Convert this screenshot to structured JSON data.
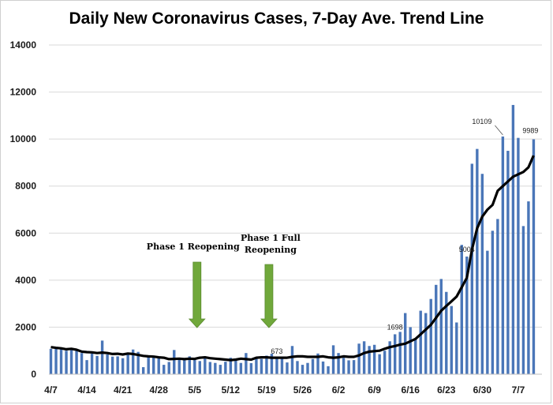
{
  "chart_data": {
    "type": "bar",
    "title": "Daily New Coronavirus Cases, 7-Day Ave. Trend Line",
    "xlabel": "",
    "ylabel": "",
    "ylim": [
      0,
      14000
    ],
    "yticks": [
      0,
      2000,
      4000,
      6000,
      8000,
      10000,
      12000,
      14000
    ],
    "grid": true,
    "legend": "none",
    "x_tick_labels": [
      "4/7",
      "4/14",
      "4/21",
      "4/28",
      "5/5",
      "5/12",
      "5/19",
      "5/26",
      "6/2",
      "6/9",
      "6/16",
      "6/23",
      "6/30",
      "7/7"
    ],
    "series": [
      {
        "name": "",
        "kind": "bar",
        "color": "#4a76b8",
        "values": [
          1080,
          1100,
          1120,
          1000,
          1050,
          990,
          900,
          600,
          880,
          780,
          1430,
          840,
          750,
          760,
          680,
          870,
          1050,
          950,
          300,
          790,
          740,
          700,
          400,
          520,
          1030,
          630,
          610,
          760,
          690,
          560,
          710,
          520,
          480,
          400,
          530,
          700,
          600,
          480,
          900,
          470,
          700,
          650,
          790,
          870,
          673,
          680,
          500,
          1200,
          560,
          400,
          480,
          650,
          880,
          540,
          340,
          1230,
          900,
          700,
          590,
          600,
          1300,
          1400,
          1200,
          1250,
          850,
          1000,
          1400,
          1698,
          1800,
          2600,
          2000,
          1500,
          2700,
          2600,
          3200,
          3800,
          4050,
          3500,
          2900,
          2200,
          5500,
          5004,
          8950,
          9580,
          8520,
          5250,
          6100,
          6600,
          10109,
          9500,
          11450,
          10050,
          6300,
          7350,
          9989
        ]
      },
      {
        "name": "",
        "kind": "line",
        "label": "7-Day Ave. Trend Line",
        "color": "#000000",
        "values": [
          1150,
          1120,
          1100,
          1060,
          1080,
          1040,
          960,
          940,
          930,
          900,
          920,
          900,
          860,
          870,
          840,
          880,
          860,
          820,
          780,
          760,
          750,
          720,
          700,
          640,
          650,
          660,
          640,
          660,
          650,
          700,
          720,
          680,
          660,
          640,
          620,
          600,
          620,
          660,
          640,
          620,
          700,
          720,
          720,
          700,
          700,
          700,
          700,
          740,
          760,
          760,
          740,
          740,
          740,
          760,
          720,
          700,
          720,
          760,
          740,
          740,
          800,
          900,
          960,
          980,
          1000,
          1080,
          1150,
          1200,
          1260,
          1300,
          1400,
          1500,
          1700,
          1900,
          2100,
          2400,
          2700,
          2900,
          3100,
          3300,
          3700,
          4100,
          5300,
          6200,
          6700,
          7000,
          7200,
          7800,
          8000,
          8200,
          8400,
          8500,
          8600,
          8800,
          9300
        ]
      }
    ],
    "data_labels": [
      {
        "index": 44,
        "text": "673"
      },
      {
        "index": 67,
        "text": "1698"
      },
      {
        "index": 81,
        "text": "5004"
      },
      {
        "index": 88,
        "text": "10109"
      },
      {
        "index": 94,
        "text": "9989"
      }
    ],
    "annotations": [
      {
        "lines": [
          "Phase 1 Reopening"
        ],
        "arrow_index": 28,
        "arrow_color": "#70a83b"
      },
      {
        "lines": [
          "Phase 1 Full",
          "Reopening"
        ],
        "arrow_index": 42,
        "arrow_color": "#70a83b"
      }
    ]
  }
}
